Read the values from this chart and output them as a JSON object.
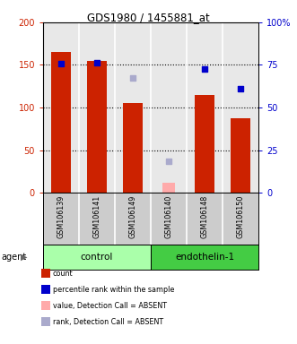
{
  "title": "GDS1980 / 1455881_at",
  "samples": [
    "GSM106139",
    "GSM106141",
    "GSM106149",
    "GSM106140",
    "GSM106148",
    "GSM106150"
  ],
  "bar_values": [
    165,
    155,
    105,
    null,
    115,
    87
  ],
  "bar_absent_values": [
    null,
    null,
    null,
    12,
    null,
    null
  ],
  "bar_color": "#cc2200",
  "bar_absent_color": "#ffaaaa",
  "dot_values": [
    76,
    76.5,
    null,
    null,
    72.5,
    61
  ],
  "dot_absent_values": [
    null,
    null,
    67.5,
    18.5,
    null,
    null
  ],
  "dot_color": "#0000cc",
  "dot_absent_color": "#aaaacc",
  "ylim_left": [
    0,
    200
  ],
  "ylim_right": [
    0,
    100
  ],
  "yticks_left": [
    0,
    50,
    100,
    150,
    200
  ],
  "ytick_labels_left": [
    "0",
    "50",
    "100",
    "150",
    "200"
  ],
  "yticks_right": [
    0,
    25,
    50,
    75,
    100
  ],
  "ytick_labels_right": [
    "0",
    "25",
    "50",
    "75",
    "100%"
  ],
  "bar_width": 0.55,
  "group_control_color": "#aaffaa",
  "group_endothelin_color": "#44cc44",
  "legend_items": [
    {
      "color": "#cc2200",
      "label": "count"
    },
    {
      "color": "#0000cc",
      "label": "percentile rank within the sample"
    },
    {
      "color": "#ffaaaa",
      "label": "value, Detection Call = ABSENT"
    },
    {
      "color": "#aaaacc",
      "label": "rank, Detection Call = ABSENT"
    }
  ]
}
